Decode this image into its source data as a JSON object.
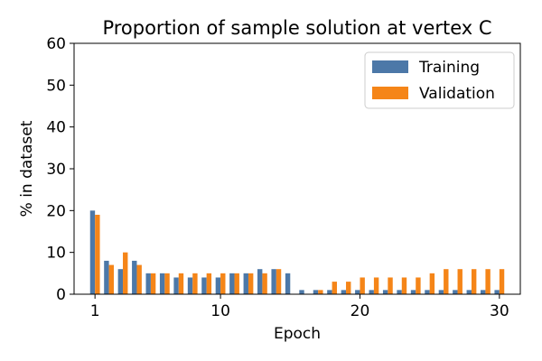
{
  "chart_data": {
    "type": "bar",
    "title": "Proportion of sample solution at vertex C",
    "xlabel": "Epoch",
    "ylabel": "% in dataset",
    "x": [
      1,
      2,
      3,
      4,
      5,
      6,
      7,
      8,
      9,
      10,
      11,
      12,
      13,
      14,
      15,
      16,
      17,
      18,
      19,
      20,
      21,
      22,
      23,
      24,
      25,
      26,
      27,
      28,
      29,
      30
    ],
    "xlim": [
      -0.5,
      31.5
    ],
    "ylim": [
      0,
      60
    ],
    "xticks": [
      1,
      10,
      20,
      30
    ],
    "yticks": [
      0,
      10,
      20,
      30,
      40,
      50,
      60
    ],
    "series": [
      {
        "name": "Training",
        "color": "#4c78a8",
        "values": [
          20,
          8,
          6,
          8,
          5,
          5,
          4,
          4,
          4,
          4,
          5,
          5,
          6,
          6,
          5,
          1,
          1,
          1,
          1,
          1,
          1,
          1,
          1,
          1,
          1,
          1,
          1,
          1,
          1,
          1
        ]
      },
      {
        "name": "Validation",
        "color": "#f58518",
        "values": [
          19,
          7,
          10,
          7,
          5,
          5,
          5,
          5,
          5,
          5,
          5,
          5,
          5,
          6,
          0,
          0,
          1,
          3,
          3,
          4,
          4,
          4,
          4,
          4,
          5,
          6,
          6,
          6,
          6,
          6
        ]
      }
    ],
    "legend": {
      "position": "top-right"
    },
    "grid": false
  }
}
